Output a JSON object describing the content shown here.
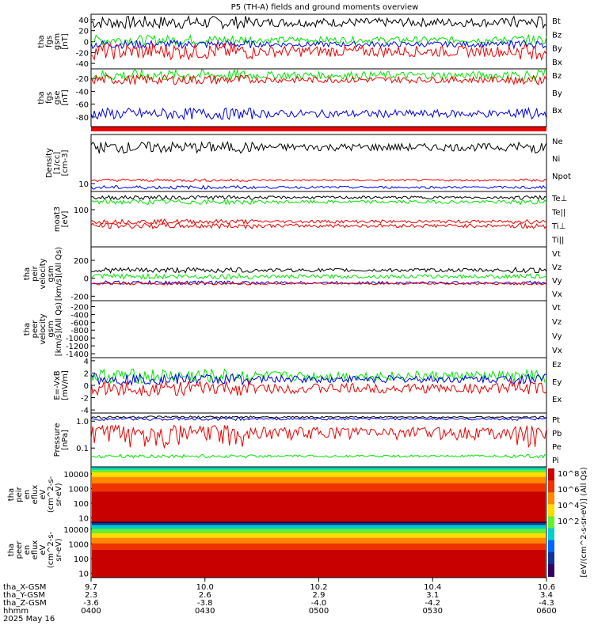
{
  "title": "P5 (TH-A) fields and ground moments overview",
  "colors": {
    "black": "#000000",
    "red": "#ee0000",
    "green": "#00e400",
    "blue": "#0000ee",
    "bar": "#ee0000"
  },
  "chart_data": [
    {
      "type": "line",
      "ylabel": [
        "tha",
        "fgs",
        "gsm",
        "[nT]"
      ],
      "yticks": [
        "40",
        "20",
        "0",
        "-20",
        "-40"
      ],
      "ylim": [
        -50,
        50
      ],
      "legend": [
        "Bt",
        "Bz",
        "By",
        "Bx"
      ],
      "legend_colors": [
        "black",
        "red",
        "green",
        "blue"
      ],
      "series": [
        {
          "name": "Bt",
          "level": 35,
          "amp": 8
        },
        {
          "name": "By",
          "level": 3,
          "amp": 6
        },
        {
          "name": "Bx",
          "level": -5,
          "amp": 5
        },
        {
          "name": "Bz",
          "level": -18,
          "amp": 10
        }
      ]
    },
    {
      "type": "line",
      "ylabel": [
        "tha",
        "fgs",
        "gse",
        "[nT]"
      ],
      "yticks": [
        "-20",
        "-40",
        "-60",
        "-80"
      ],
      "ylim": [
        -95,
        -5
      ],
      "legend": [
        "Bz",
        "By",
        "Bx"
      ],
      "legend_colors": [
        "red",
        "green",
        "blue"
      ],
      "series": [
        {
          "name": "By",
          "level": -15,
          "amp": 6
        },
        {
          "name": "Bz",
          "level": -22,
          "amp": 5
        },
        {
          "name": "Bx",
          "level": -75,
          "amp": 6
        }
      ]
    },
    {
      "type": "line",
      "ylabel": [
        "Density",
        "[1/cc]",
        "[cm-3]"
      ],
      "yticks": [
        "10"
      ],
      "ylim": [
        8,
        40
      ],
      "legend": [
        "Ne",
        "Ni",
        "Npot"
      ],
      "legend_colors": [
        "red",
        "black",
        "blue"
      ],
      "series": [
        {
          "name": "Ni",
          "level": 28,
          "amp": 3
        },
        {
          "name": "Ne",
          "level": 11,
          "amp": 0.3
        },
        {
          "name": "Npot",
          "level": 9,
          "amp": 0.3
        }
      ]
    },
    {
      "type": "line",
      "ylabel": [
        "moat3",
        "[eV]"
      ],
      "yticks": [
        "100"
      ],
      "ylim": [
        20,
        220
      ],
      "legend": [
        "Te⊥",
        "Te||",
        "Ti⊥",
        "Ti||"
      ],
      "legend_colors": [
        "red",
        "black",
        "red",
        "green"
      ],
      "series": [
        {
          "name": "Te||",
          "level": 170,
          "amp": 10
        },
        {
          "name": "Ti||",
          "level": 140,
          "amp": 10
        },
        {
          "name": "Te⊥",
          "level": 60,
          "amp": 4
        },
        {
          "name": "Ti⊥",
          "level": 50,
          "amp": 4
        }
      ]
    },
    {
      "type": "line",
      "ylabel": [
        "tha",
        "peir",
        "velocity",
        "gsm",
        "[km/s](All Qs)"
      ],
      "yticks": [
        "200",
        "0",
        "-200"
      ],
      "ylim": [
        -250,
        350
      ],
      "legend": [
        "Vt",
        "Vz",
        "Vy",
        "Vx"
      ],
      "legend_colors": [
        "black",
        "red",
        "green",
        "blue"
      ],
      "series": [
        {
          "name": "Vt",
          "level": 90,
          "amp": 20
        },
        {
          "name": "Vy",
          "level": 20,
          "amp": 20
        },
        {
          "name": "Vx",
          "level": -50,
          "amp": 15
        },
        {
          "name": "Vz",
          "level": -60,
          "amp": 10
        }
      ]
    },
    {
      "type": "line",
      "ylabel": [
        "tha",
        "peer",
        "velocity",
        "gsm",
        "[km/s](All Qs)"
      ],
      "yticks": [
        "-200",
        "-400",
        "-600",
        "-800",
        "-1000",
        "-1200",
        "-1400"
      ],
      "ylim": [
        -1500,
        -50
      ],
      "legend": [
        "Vt",
        "Vz",
        "Vy",
        "Vx"
      ],
      "legend_colors": [
        "black",
        "red",
        "green",
        "blue"
      ],
      "series": []
    },
    {
      "type": "line",
      "ylabel": [
        "E=-VxB",
        "[mV/m]"
      ],
      "yticks": [
        "4",
        "2",
        "0",
        "-2",
        "-4"
      ],
      "ylim": [
        -4.5,
        4.5
      ],
      "legend": [
        "Ez",
        "Ey",
        "Ex"
      ],
      "legend_colors": [
        "red",
        "green",
        "blue"
      ],
      "series": [
        {
          "name": "Ey",
          "level": 1.5,
          "amp": 0.8
        },
        {
          "name": "Ex",
          "level": 1.0,
          "amp": 0.6
        },
        {
          "name": "Ez",
          "level": -0.5,
          "amp": 0.8
        }
      ]
    },
    {
      "type": "line",
      "ylabel": [
        "Pressure",
        "[nPa]"
      ],
      "yticks": [
        "1.0",
        "0.1"
      ],
      "ylim": [
        0.02,
        2.0
      ],
      "legend": [
        "Pt",
        "Pb",
        "Pe",
        "Pi"
      ],
      "legend_colors": [
        "black",
        "red",
        "green",
        "blue"
      ],
      "series": [
        {
          "name": "Pt",
          "level": 1.4,
          "amp": 0.1
        },
        {
          "name": "Pi",
          "level": 1.2,
          "amp": 0.1
        },
        {
          "name": "Pb",
          "level": 0.4,
          "amp": 0.2
        },
        {
          "name": "Pe",
          "level": 0.05,
          "amp": 0.005
        }
      ]
    },
    {
      "type": "heatmap",
      "ylabel": [
        "tha",
        "peir",
        "en",
        "eflux",
        "eV",
        "(cm^2-s-",
        "sr-eV)"
      ],
      "yticks": [
        "10000",
        "1000",
        "100",
        "10"
      ],
      "ylim": [
        5,
        30000
      ]
    },
    {
      "type": "heatmap",
      "ylabel": [
        "tha",
        "peer",
        "en",
        "eflux",
        "eV",
        "(cm^2-s-",
        "sr-eV)"
      ],
      "yticks": [
        "10000",
        "1000",
        "100",
        "10"
      ],
      "ylim": [
        5,
        30000
      ]
    }
  ],
  "colorbar": {
    "label": "[eV/(cm^2-s-sr-eV)] (All Qs)",
    "ticks": [
      "10^8",
      "10^6",
      "10^4",
      "10^2"
    ]
  },
  "x_axis": {
    "rows": [
      {
        "label": "tha_X-GSM",
        "values": [
          "9.7",
          "10.0",
          "10.2",
          "10.4",
          "10.6"
        ]
      },
      {
        "label": "tha_Y-GSM",
        "values": [
          "2.3",
          "2.6",
          "2.9",
          "3.1",
          "3.4"
        ]
      },
      {
        "label": "tha_Z-GSM",
        "values": [
          "-3.6",
          "-3.8",
          "-4.0",
          "-4.2",
          "-4.3"
        ]
      },
      {
        "label": "hhmm",
        "values": [
          "0400",
          "0430",
          "0500",
          "0530",
          "0600"
        ]
      }
    ],
    "date": "2025 May 16"
  }
}
